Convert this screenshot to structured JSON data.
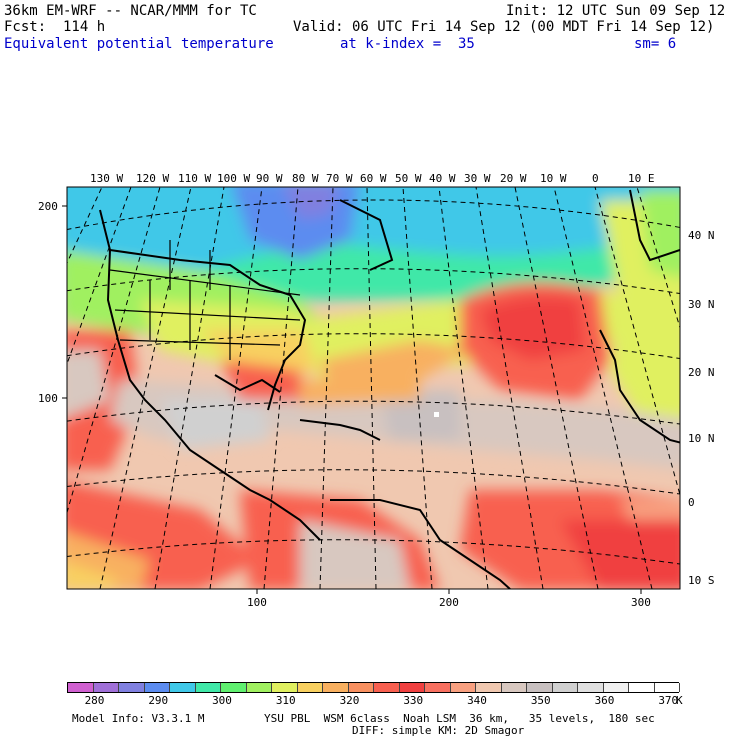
{
  "header": {
    "line1_left": "36km EM-WRF -- NCAR/MMM for TC",
    "line1_right": "Init: 12 UTC Sun 09 Sep 12",
    "line2_left": "Fcst:  114 h",
    "line2_right": "Valid: 06 UTC Fri 14 Sep 12 (00 MDT Fri 14 Sep 12)",
    "field_name": "Equivalent potential temperature",
    "level": "at k-index =  35",
    "smoothing": "sm= 6"
  },
  "map": {
    "lon_labels": [
      "130 W",
      "120 W",
      "110 W",
      "100 W",
      "90 W",
      "80 W",
      "70 W",
      "60 W",
      "50 W",
      "40 W",
      "30 W",
      "20 W",
      "10 W",
      "0",
      "10 E"
    ],
    "lat_labels": [
      "40 N",
      "30 N",
      "20 N",
      "10 N",
      "0",
      "10 S"
    ],
    "y_grid_labels": [
      "200",
      "100"
    ],
    "x_grid_labels": [
      "100",
      "200",
      "300"
    ]
  },
  "colorbar": {
    "unit": "K",
    "labels": [
      "280",
      "290",
      "300",
      "310",
      "320",
      "330",
      "340",
      "350",
      "360",
      "370"
    ],
    "colors": [
      "#d060d0",
      "#a070d8",
      "#8080e0",
      "#5c8cf0",
      "#40c8e8",
      "#40e8a8",
      "#60f070",
      "#a0f060",
      "#e0f060",
      "#f8d060",
      "#f8b060",
      "#f89060",
      "#f86050",
      "#f04040",
      "#f87060",
      "#f8a080",
      "#f0c8b0",
      "#d8c8c0",
      "#c8c0c0",
      "#d0d0d0",
      "#e0e0e0",
      "#f0f0f0",
      "#ffffff",
      "#ffffff"
    ]
  },
  "footer": {
    "model_info": "Model Info: V3.3.1 M",
    "physics": "YSU PBL  WSM 6class  Noah LSM  36 km,   35 levels,  180 sec",
    "diffusion": "DIFF: simple KM: 2D Smagor"
  }
}
